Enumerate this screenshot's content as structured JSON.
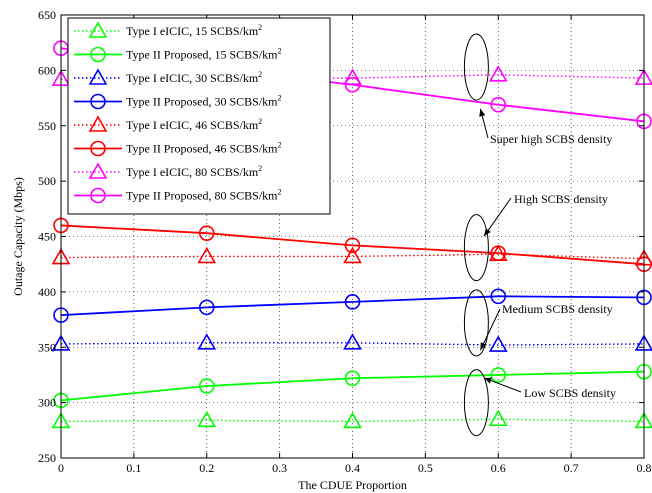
{
  "chart_data": {
    "type": "line",
    "xlabel": "The CDUE Proportion",
    "ylabel": "Outage Capacity (Mbps)",
    "xlim": [
      0,
      0.8
    ],
    "ylim": [
      250,
      650
    ],
    "x_ticks": [
      "0",
      "0.1",
      "0.2",
      "0.3",
      "0.4",
      "0.5",
      "0.6",
      "0.7",
      "0.8"
    ],
    "y_ticks": [
      "250",
      "300",
      "350",
      "400",
      "450",
      "500",
      "550",
      "600",
      "650"
    ],
    "grid": true,
    "legend_position": "top-left",
    "x": [
      0,
      0.2,
      0.4,
      0.6,
      0.8
    ],
    "series": [
      {
        "name": "Type I eICIC, 15 SCBS/km",
        "sup": "2",
        "color": "#00ff00",
        "style": "dotted",
        "marker": "triangle",
        "values": [
          283,
          284,
          283,
          285,
          283
        ]
      },
      {
        "name": "Type II Proposed, 15 SCBS/km",
        "sup": "2",
        "color": "#00ff00",
        "style": "solid",
        "marker": "circle",
        "values": [
          302,
          315,
          322,
          325,
          328
        ]
      },
      {
        "name": "Type I eICIC, 30 SCBS/km",
        "sup": "2",
        "color": "#0000ff",
        "style": "dotted",
        "marker": "triangle",
        "values": [
          353,
          354,
          354,
          352,
          353
        ]
      },
      {
        "name": "Type II Proposed, 30 SCBS/km",
        "sup": "2",
        "color": "#0000ff",
        "style": "solid",
        "marker": "circle",
        "values": [
          379,
          386,
          391,
          396,
          395
        ]
      },
      {
        "name": "Type I eICIC, 46 SCBS/km",
        "sup": "2",
        "color": "#ff0000",
        "style": "dotted",
        "marker": "triangle",
        "values": [
          431,
          432,
          432,
          434,
          430
        ]
      },
      {
        "name": "Type II Proposed, 46 SCBS/km",
        "sup": "2",
        "color": "#ff0000",
        "style": "solid",
        "marker": "circle",
        "values": [
          460,
          453,
          442,
          435,
          425
        ]
      },
      {
        "name": "Type I eICIC, 80 SCBS/km",
        "sup": "2",
        "color": "#ff00ff",
        "style": "dotted",
        "marker": "triangle",
        "values": [
          592,
          593,
          593,
          596,
          593
        ]
      },
      {
        "name": "Type II Proposed, 80 SCBS/km",
        "sup": "2",
        "color": "#ff00ff",
        "style": "solid",
        "marker": "circle",
        "values": [
          620,
          603,
          587,
          569,
          554
        ]
      }
    ],
    "annotations": [
      {
        "text": "Super high SCBS density",
        "ellipse_x": 0.57,
        "ellipse_y": 603,
        "target_x": 0.57,
        "target_y": 568
      },
      {
        "text": "High SCBS density",
        "ellipse_x": 0.57,
        "ellipse_y": 440,
        "target_x": 0.575,
        "target_y": 453
      },
      {
        "text": "Medium SCBS density",
        "ellipse_x": 0.57,
        "ellipse_y": 372,
        "target_x": 0.57,
        "target_y": 350
      },
      {
        "text": "Low SCBS density",
        "ellipse_x": 0.57,
        "ellipse_y": 300,
        "target_x": 0.575,
        "target_y": 325
      }
    ]
  }
}
